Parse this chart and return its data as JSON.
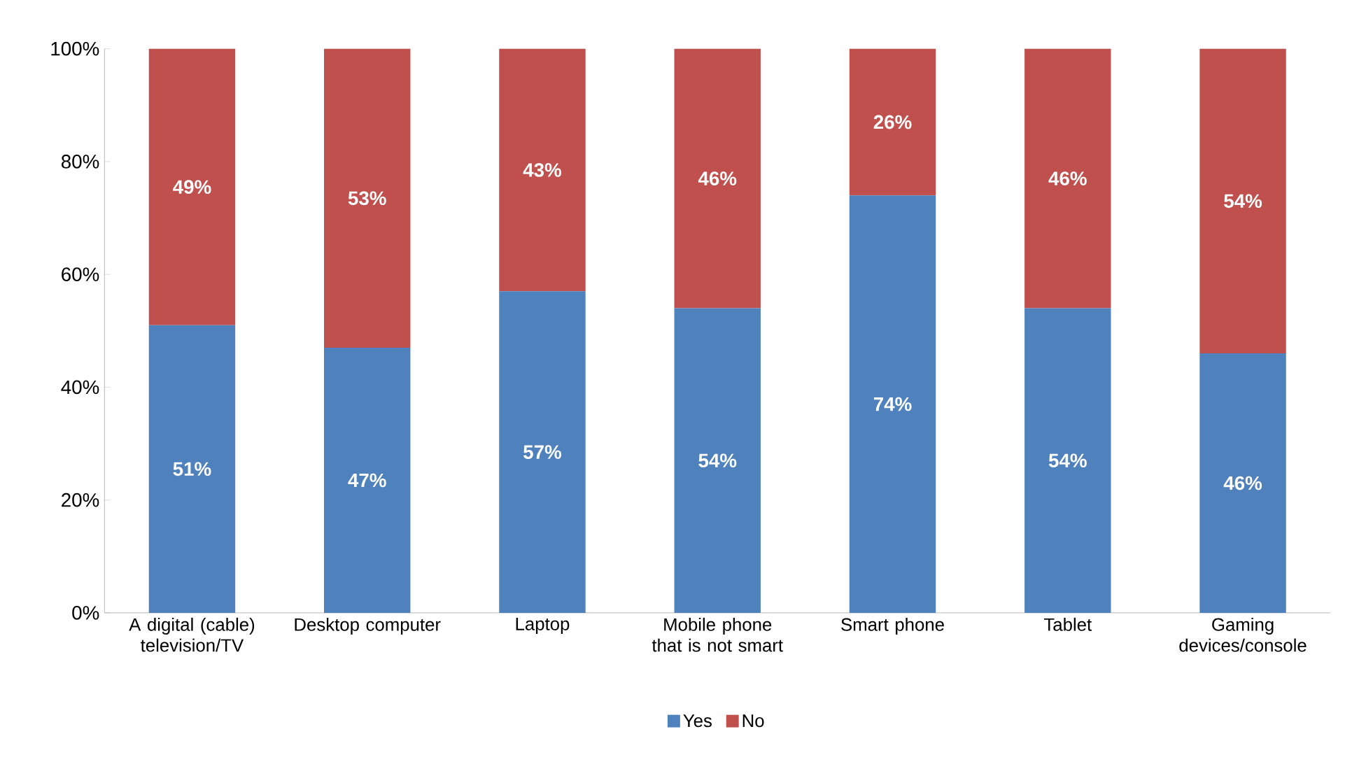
{
  "chart_data": {
    "type": "bar",
    "stacked": true,
    "legend": "bottom",
    "categories": [
      "A digital (cable) television/TV",
      "Desktop computer",
      "Laptop",
      "Mobile phone that is not smart",
      "Smart phone",
      "Tablet",
      "Gaming devices/console"
    ],
    "series": [
      {
        "name": "Yes",
        "color": "#4f81bd",
        "values": [
          51,
          47,
          57,
          54,
          74,
          54,
          46
        ],
        "value_labels": [
          "51%",
          "47%",
          "57%",
          "54%",
          "74%",
          "54%",
          "46%"
        ]
      },
      {
        "name": "No",
        "color": "#c0504d",
        "values": [
          49,
          53,
          43,
          46,
          26,
          46,
          54
        ],
        "value_labels": [
          "49%",
          "53%",
          "43%",
          "46%",
          "26%",
          "46%",
          "54%"
        ]
      }
    ],
    "ylim": [
      0,
      100
    ],
    "yticks": [
      {
        "value": 0,
        "label": "0%"
      },
      {
        "value": 20,
        "label": "20%"
      },
      {
        "value": 40,
        "label": "40%"
      },
      {
        "value": 60,
        "label": "60%"
      },
      {
        "value": 80,
        "label": "80%"
      },
      {
        "value": 100,
        "label": "100%"
      }
    ]
  }
}
